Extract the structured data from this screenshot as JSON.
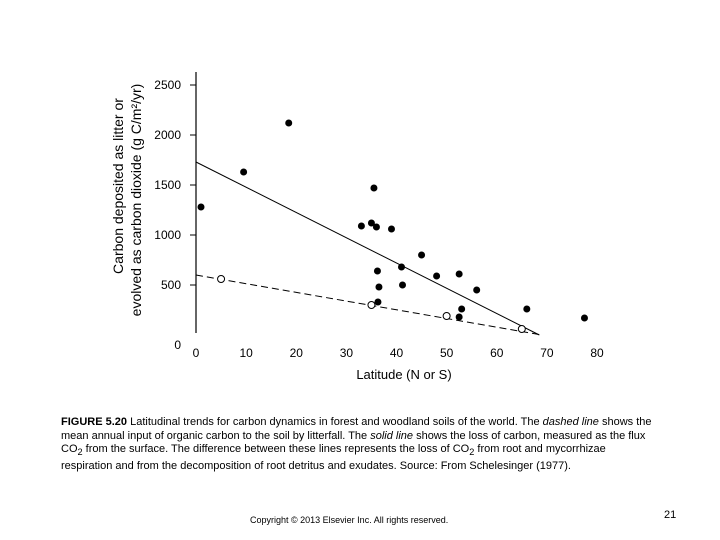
{
  "chart_data": {
    "type": "scatter",
    "title": "",
    "xlabel": "Latitude (N or S)",
    "ylabel_line1": "Carbon deposited as litter or",
    "ylabel_line2": "evolved as carbon dioxide (g C/m²/yr)",
    "xlim": [
      0,
      80
    ],
    "ylim": [
      0,
      2500
    ],
    "xticks": [
      "0",
      "10",
      "20",
      "30",
      "40",
      "50",
      "60",
      "70",
      "80"
    ],
    "yticks": [
      "0",
      "500",
      "1000",
      "1500",
      "2000",
      "2500"
    ],
    "grid": false,
    "series": [
      {
        "marker": "filled-circle",
        "points": [
          [
            1,
            1280
          ],
          [
            9.5,
            1630
          ],
          [
            18.5,
            2120
          ],
          [
            33,
            1090
          ],
          [
            35,
            1120
          ],
          [
            35.5,
            1470
          ],
          [
            36,
            1080
          ],
          [
            36.2,
            640
          ],
          [
            36.5,
            480
          ],
          [
            36.3,
            330
          ],
          [
            39,
            1060
          ],
          [
            41,
            680
          ],
          [
            41.2,
            500
          ],
          [
            45,
            800
          ],
          [
            48,
            590
          ],
          [
            52.5,
            610
          ],
          [
            53,
            260
          ],
          [
            52.5,
            180
          ],
          [
            56,
            450
          ],
          [
            66,
            260
          ],
          [
            77.5,
            170
          ]
        ]
      },
      {
        "marker": "open-circle",
        "points": [
          [
            5,
            560
          ],
          [
            35,
            300
          ],
          [
            50,
            190
          ],
          [
            65,
            60
          ]
        ]
      }
    ],
    "lines": [
      {
        "style": "solid",
        "x": [
          0,
          68.5
        ],
        "y": [
          1730,
          0
        ]
      },
      {
        "style": "dashed",
        "x": [
          0,
          69
        ],
        "y": [
          600,
          0
        ]
      }
    ]
  },
  "caption": {
    "figure_label": "FIGURE 5.20",
    "part1": " Latitudinal trends for carbon dynamics in forest and woodland soils of the world. The ",
    "dashed_line": "dashed line",
    "part2": " shows the mean annual input of organic carbon to the soil by litterfall. The ",
    "solid_line": "solid line",
    "part3": " shows the loss of carbon, measured as the flux CO",
    "sub1": "2",
    "part4": " from the surface. The difference between these lines represents the loss of CO",
    "sub2": "2",
    "part5": " from root and mycorrhizae respiration and from the decomposition of root detritus and exudates. Source: From Schelesinger (1977)."
  },
  "footer": {
    "copyright": "Copyright © 2013 Elsevier Inc. All rights reserved.",
    "slide_number": "21"
  }
}
